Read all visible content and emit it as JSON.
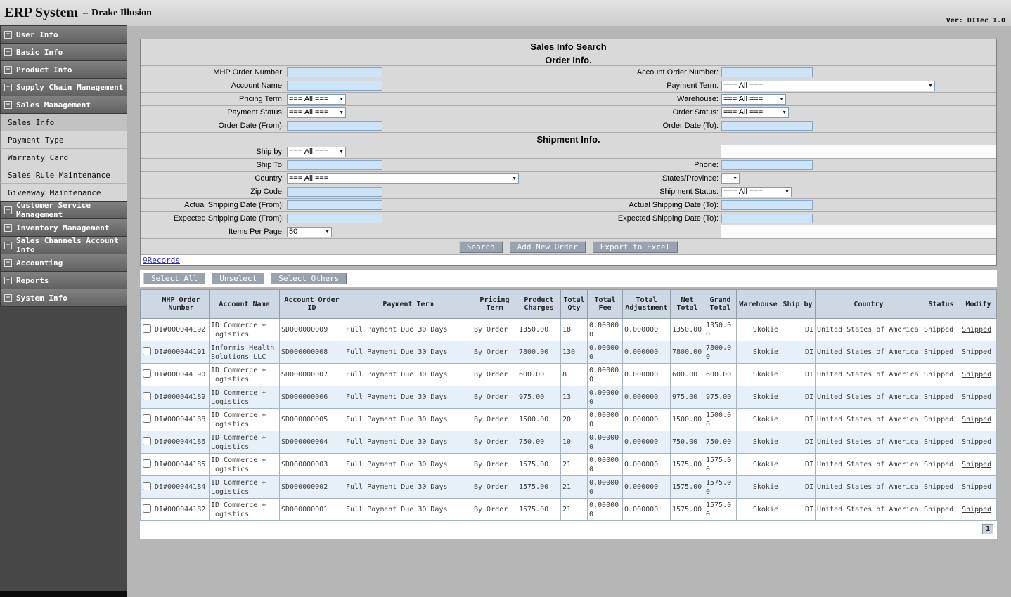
{
  "app": {
    "title_main": "ERP System",
    "title_sep": "–",
    "title_sub": "Drake Illusion",
    "version": "Ver: DITec 1.0"
  },
  "sidebar": {
    "expand_glyph": "+",
    "collapse_glyph": "−",
    "items": [
      {
        "type": "section",
        "label": "User Info"
      },
      {
        "type": "section",
        "label": "Basic Info"
      },
      {
        "type": "section",
        "label": "Product Info"
      },
      {
        "type": "section",
        "label": "Supply Chain Management"
      },
      {
        "type": "section",
        "label": "Sales Management",
        "expanded": true
      },
      {
        "type": "child",
        "label": "Sales Info",
        "active": true
      },
      {
        "type": "child",
        "label": "Payment Type"
      },
      {
        "type": "child",
        "label": "Warranty Card"
      },
      {
        "type": "child",
        "label": "Sales Rule Maintenance"
      },
      {
        "type": "child",
        "label": "Giveaway Maintenance"
      },
      {
        "type": "section",
        "label": "Customer Service Management"
      },
      {
        "type": "section",
        "label": "Inventory Management"
      },
      {
        "type": "section",
        "label": "Sales Channels Account Info"
      },
      {
        "type": "section",
        "label": "Accounting"
      },
      {
        "type": "section",
        "label": "Reports"
      },
      {
        "type": "section",
        "label": "System Info"
      }
    ]
  },
  "form": {
    "title": "Sales Info Search",
    "order_section": "Order Info.",
    "shipment_section": "Shipment Info.",
    "all_option": "=== All ===",
    "items_per_page_value": "50",
    "states_province_value": "",
    "labels": {
      "mhp_order_number": "MHP Order Number:",
      "account_order_number": "Account Order Number:",
      "account_name": "Account Name:",
      "payment_term": "Payment Term:",
      "pricing_term": "Pricing Term:",
      "warehouse": "Warehouse:",
      "payment_status": "Payment Status:",
      "order_status": "Order Status:",
      "order_date_from": "Order Date (From):",
      "order_date_to": "Order Date (To):",
      "ship_by": "Ship by:",
      "ship_to": "Ship To:",
      "phone": "Phone:",
      "country": "Country:",
      "states_province": "States/Province:",
      "zip_code": "Zip Code:",
      "shipment_status": "Shipment Status:",
      "actual_shipping_from": "Actual Shipping Date (From):",
      "actual_shipping_to": "Actual Shipping Date (To):",
      "expected_shipping_from": "Expected Shipping Date (From):",
      "expected_shipping_to": "Expected Shipping Date (To):",
      "items_per_page": "Items Per Page:"
    },
    "buttons": {
      "search": "Search",
      "add_new_order": "Add New Order",
      "export_excel": "Export to Excel"
    }
  },
  "results": {
    "records_text": "9Records",
    "select_buttons": {
      "select_all": "Select All",
      "unselect": "Unselect",
      "select_others": "Select Others"
    },
    "page": "1"
  },
  "table": {
    "columns": [
      {
        "key": "mhp",
        "label": "MHP Order Number"
      },
      {
        "key": "account_name",
        "label": "Account Name"
      },
      {
        "key": "account_order_id",
        "label": "Account Order ID"
      },
      {
        "key": "payment_term",
        "label": "Payment Term"
      },
      {
        "key": "pricing_term",
        "label": "Pricing Term"
      },
      {
        "key": "product_charges",
        "label": "Product Charges"
      },
      {
        "key": "total_qty",
        "label": "Total Qty"
      },
      {
        "key": "total_fee",
        "label": "Total Fee"
      },
      {
        "key": "total_adjustment",
        "label": "Total Adjustment"
      },
      {
        "key": "net_total",
        "label": "Net Total"
      },
      {
        "key": "grand_total",
        "label": "Grand Total"
      },
      {
        "key": "warehouse",
        "label": "Warehouse"
      },
      {
        "key": "ship_by",
        "label": "Ship by"
      },
      {
        "key": "country",
        "label": "Country"
      },
      {
        "key": "status",
        "label": "Status"
      },
      {
        "key": "modify",
        "label": "Modify"
      }
    ],
    "rows": [
      {
        "mhp": "DI#000044192",
        "account_name": "ID Commerce + Logistics",
        "account_order_id": "SD000000009",
        "payment_term": "Full Payment Due 30 Days",
        "pricing_term": "By Order",
        "product_charges": "1350.00",
        "total_qty": "18",
        "total_fee": "0.000000",
        "total_adjustment": "0.000000",
        "net_total": "1350.00",
        "grand_total": "1350.00",
        "warehouse": "Skokie",
        "ship_by": "DI",
        "country": "United States of America",
        "status": "Shipped",
        "modify": "Shipped"
      },
      {
        "mhp": "DI#000044191",
        "account_name": "Informis Health Solutions LLC",
        "account_order_id": "SD000000008",
        "payment_term": "Full Payment Due 30 Days",
        "pricing_term": "By Order",
        "product_charges": "7800.00",
        "total_qty": "130",
        "total_fee": "0.000000",
        "total_adjustment": "0.000000",
        "net_total": "7800.00",
        "grand_total": "7800.00",
        "warehouse": "Skokie",
        "ship_by": "DI",
        "country": "United States of America",
        "status": "Shipped",
        "modify": "Shipped"
      },
      {
        "mhp": "DI#000044190",
        "account_name": "ID Commerce + Logistics",
        "account_order_id": "SD000000007",
        "payment_term": "Full Payment Due 30 Days",
        "pricing_term": "By Order",
        "product_charges": "600.00",
        "total_qty": "8",
        "total_fee": "0.000000",
        "total_adjustment": "0.000000",
        "net_total": "600.00",
        "grand_total": "600.00",
        "warehouse": "Skokie",
        "ship_by": "DI",
        "country": "United States of America",
        "status": "Shipped",
        "modify": "Shipped"
      },
      {
        "mhp": "DI#000044189",
        "account_name": "ID Commerce + Logistics",
        "account_order_id": "SD000000006",
        "payment_term": "Full Payment Due 30 Days",
        "pricing_term": "By Order",
        "product_charges": "975.00",
        "total_qty": "13",
        "total_fee": "0.000000",
        "total_adjustment": "0.000000",
        "net_total": "975.00",
        "grand_total": "975.00",
        "warehouse": "Skokie",
        "ship_by": "DI",
        "country": "United States of America",
        "status": "Shipped",
        "modify": "Shipped"
      },
      {
        "mhp": "DI#000044188",
        "account_name": "ID Commerce + Logistics",
        "account_order_id": "SD000000005",
        "payment_term": "Full Payment Due 30 Days",
        "pricing_term": "By Order",
        "product_charges": "1500.00",
        "total_qty": "20",
        "total_fee": "0.000000",
        "total_adjustment": "0.000000",
        "net_total": "1500.00",
        "grand_total": "1500.00",
        "warehouse": "Skokie",
        "ship_by": "DI",
        "country": "United States of America",
        "status": "Shipped",
        "modify": "Shipped"
      },
      {
        "mhp": "DI#000044186",
        "account_name": "ID Commerce + Logistics",
        "account_order_id": "SD000000004",
        "payment_term": "Full Payment Due 30 Days",
        "pricing_term": "By Order",
        "product_charges": "750.00",
        "total_qty": "10",
        "total_fee": "0.000000",
        "total_adjustment": "0.000000",
        "net_total": "750.00",
        "grand_total": "750.00",
        "warehouse": "Skokie",
        "ship_by": "DI",
        "country": "United States of America",
        "status": "Shipped",
        "modify": "Shipped"
      },
      {
        "mhp": "DI#000044185",
        "account_name": "ID Commerce + Logistics",
        "account_order_id": "SD000000003",
        "payment_term": "Full Payment Due 30 Days",
        "pricing_term": "By Order",
        "product_charges": "1575.00",
        "total_qty": "21",
        "total_fee": "0.000000",
        "total_adjustment": "0.000000",
        "net_total": "1575.00",
        "grand_total": "1575.00",
        "warehouse": "Skokie",
        "ship_by": "DI",
        "country": "United States of America",
        "status": "Shipped",
        "modify": "Shipped"
      },
      {
        "mhp": "DI#000044184",
        "account_name": "ID Commerce + Logistics",
        "account_order_id": "SD000000002",
        "payment_term": "Full Payment Due 30 Days",
        "pricing_term": "By Order",
        "product_charges": "1575.00",
        "total_qty": "21",
        "total_fee": "0.000000",
        "total_adjustment": "0.000000",
        "net_total": "1575.00",
        "grand_total": "1575.00",
        "warehouse": "Skokie",
        "ship_by": "DI",
        "country": "United States of America",
        "status": "Shipped",
        "modify": "Shipped"
      },
      {
        "mhp": "DI#000044182",
        "account_name": "ID Commerce + Logistics",
        "account_order_id": "SD000000001",
        "payment_term": "Full Payment Due 30 Days",
        "pricing_term": "By Order",
        "product_charges": "1575.00",
        "total_qty": "21",
        "total_fee": "0.000000",
        "total_adjustment": "0.000000",
        "net_total": "1575.00",
        "grand_total": "1575.00",
        "warehouse": "Skokie",
        "ship_by": "DI",
        "country": "United States of America",
        "status": "Shipped",
        "modify": "Shipped"
      }
    ]
  }
}
